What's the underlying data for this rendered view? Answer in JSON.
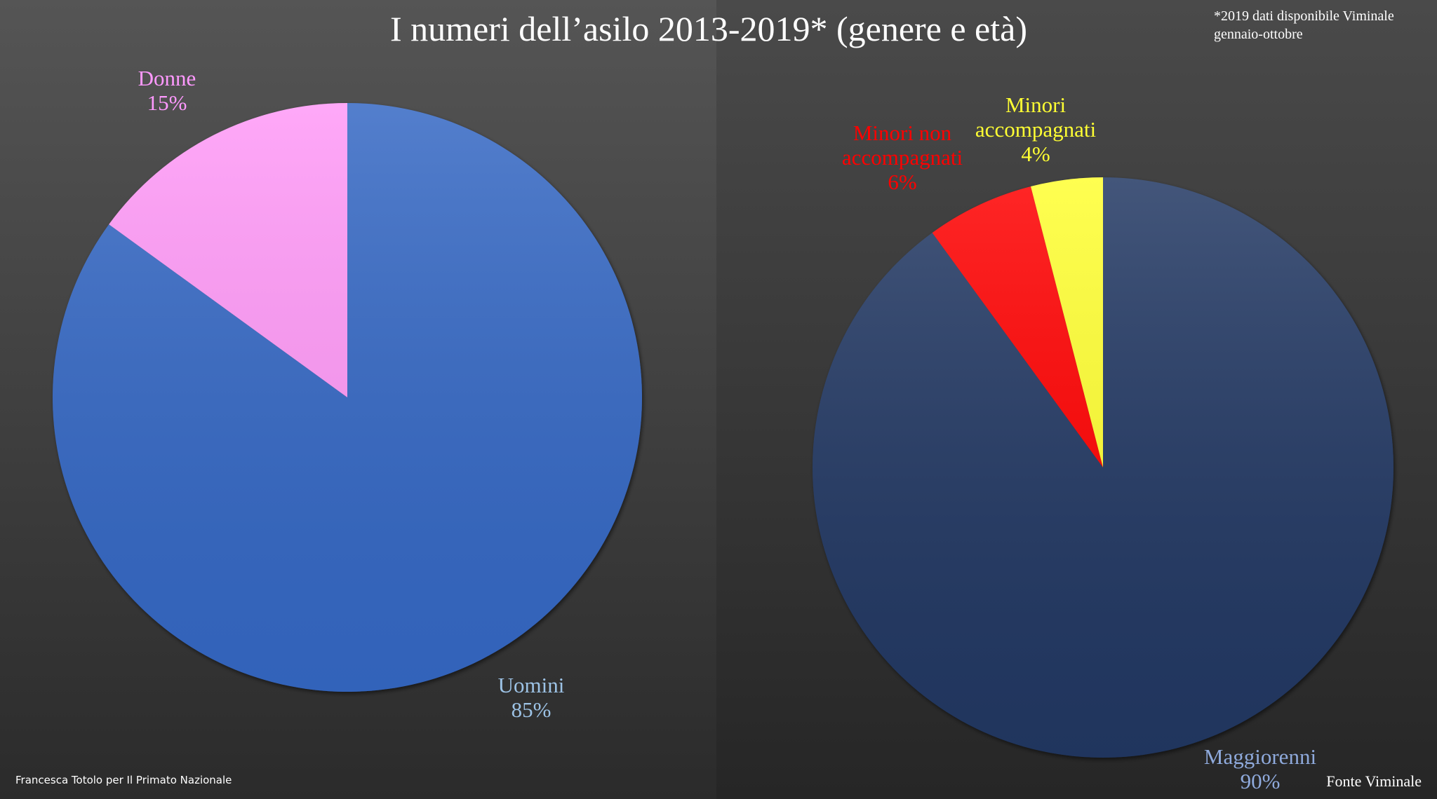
{
  "title": "I numeri dell’asilo 2013-2019*  (genere e età)",
  "note": "*2019 dati disponibile Viminale gennaio-ottobre",
  "credit": "Francesca Totolo per Il Primato Nazionale",
  "source": "Fonte Viminale",
  "chart_data": [
    {
      "type": "pie",
      "categories": [
        "Uomini",
        "Donne"
      ],
      "values": [
        85,
        15
      ],
      "value_labels": [
        "85%",
        "15%"
      ],
      "colors": [
        "#3567c4",
        "#ff99f7"
      ]
    },
    {
      "type": "pie",
      "categories": [
        "Maggiorenni",
        "Minori non accompagnati",
        "Minori accompagnati"
      ],
      "values": [
        90,
        6,
        4
      ],
      "value_labels": [
        "90%",
        "6%",
        "4%"
      ],
      "colors": [
        "#203864",
        "#ff0000",
        "#ffff33"
      ]
    }
  ]
}
